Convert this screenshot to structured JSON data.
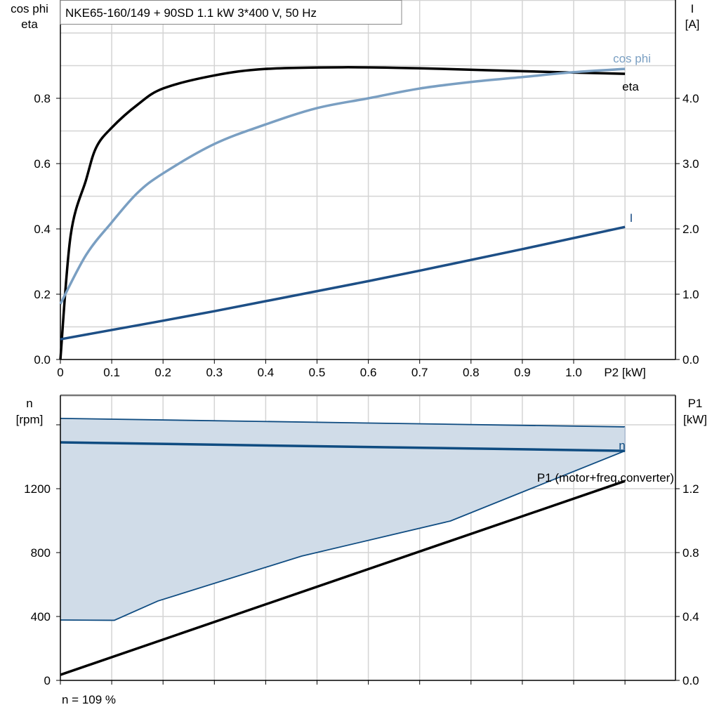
{
  "chart_data": [
    {
      "type": "line",
      "title": "NKE65-160/149 + 90SD   1.1 kW   3*400 V, 50 Hz",
      "xlabel": "P2 [kW]",
      "ylabel_left": [
        "cos phi",
        "eta"
      ],
      "ylabel_right": [
        "I",
        "[A]"
      ],
      "xlim": [
        0,
        1.2
      ],
      "ylim_left": [
        0,
        1.1
      ],
      "ylim_right": [
        0,
        5.5
      ],
      "x_ticks": [
        "0",
        "0.1",
        "0.2",
        "0.3",
        "0.4",
        "0.5",
        "0.6",
        "0.7",
        "0.8",
        "0.9",
        "1.0"
      ],
      "y_ticks_left": [
        "0.0",
        "0.2",
        "0.4",
        "0.6",
        "0.8"
      ],
      "y_ticks_right": [
        "0.0",
        "1.0",
        "2.0",
        "3.0",
        "4.0"
      ],
      "grid": true,
      "series": [
        {
          "name": "eta",
          "axis": "left",
          "color": "#000000",
          "x": [
            0,
            0.02,
            0.05,
            0.07,
            0.1,
            0.15,
            0.2,
            0.3,
            0.4,
            0.55,
            0.7,
            0.9,
            1.1
          ],
          "y": [
            0,
            0.38,
            0.55,
            0.65,
            0.71,
            0.78,
            0.83,
            0.87,
            0.89,
            0.895,
            0.892,
            0.883,
            0.875
          ]
        },
        {
          "name": "cos phi",
          "axis": "left",
          "color": "#7a9fc2",
          "x": [
            0,
            0.05,
            0.1,
            0.15,
            0.2,
            0.3,
            0.4,
            0.5,
            0.6,
            0.7,
            0.8,
            0.9,
            1.0,
            1.1
          ],
          "y": [
            0.17,
            0.32,
            0.42,
            0.51,
            0.57,
            0.66,
            0.72,
            0.77,
            0.8,
            0.83,
            0.85,
            0.865,
            0.88,
            0.89
          ]
        },
        {
          "name": "I",
          "axis": "right",
          "color": "#1d4f86",
          "x": [
            0,
            0.3,
            0.6,
            0.9,
            1.1
          ],
          "y": [
            0.31,
            0.74,
            1.2,
            1.69,
            2.03
          ]
        }
      ]
    },
    {
      "type": "area",
      "xlim": [
        0,
        1.2
      ],
      "ylabel_left": [
        "n",
        "[rpm]"
      ],
      "ylabel_right": [
        "P1",
        "[kW]"
      ],
      "ylim_left": [
        0,
        1784
      ],
      "ylim_right": [
        0,
        1.784
      ],
      "y_ticks_left": [
        "0",
        "400",
        "800",
        "1200"
      ],
      "y_ticks_right": [
        "0.0",
        "0.4",
        "0.8",
        "1.2"
      ],
      "grid": true,
      "operating_range": {
        "color": "#d0dce8",
        "upper": {
          "x": [
            0,
            1.1
          ],
          "y": [
            1640,
            1587
          ]
        },
        "lower": {
          "x": [
            0,
            0.105,
            0.19,
            0.47,
            0.76,
            1.1
          ],
          "y": [
            378,
            376,
            497,
            778,
            998,
            1437
          ]
        }
      },
      "series": [
        {
          "name": "n",
          "axis": "left",
          "color": "#0f4c81",
          "x": [
            0,
            1.1
          ],
          "y": [
            1490,
            1437
          ]
        },
        {
          "name": "P1 (motor+freq.converter)",
          "axis": "right",
          "color": "#000000",
          "x": [
            0,
            1.1
          ],
          "y": [
            0.035,
            1.248
          ]
        }
      ],
      "footer": "n = 109 %"
    }
  ]
}
